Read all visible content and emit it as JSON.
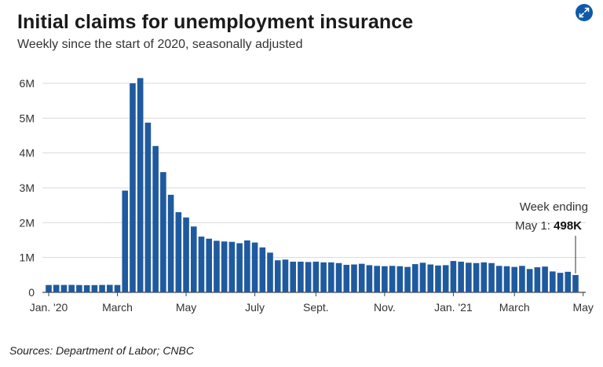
{
  "header": {
    "title": "Initial claims for unemployment insurance",
    "subtitle": "Weekly since the start of 2020, seasonally adjusted"
  },
  "annotation": {
    "line1": "Week ending",
    "line2_prefix": "May 1: ",
    "line2_value": "498K"
  },
  "footer": {
    "source": "Sources:  Department of Labor; CNBC"
  },
  "colors": {
    "bar": "#1f5a9e",
    "grid": "#d9d9d9",
    "expand_button": "#0f5aa8"
  },
  "icons": {
    "expand": "expand-arrows-icon"
  },
  "chart_data": {
    "type": "bar",
    "title": "Initial claims for unemployment insurance",
    "subtitle": "Weekly since the start of 2020, seasonally adjusted",
    "xlabel": "",
    "ylabel": "",
    "ylim": [
      0,
      6000000
    ],
    "y_ticks": [
      0,
      1000000,
      2000000,
      3000000,
      4000000,
      5000000,
      6000000
    ],
    "y_tick_labels": [
      "0",
      "1M",
      "2M",
      "3M",
      "4M",
      "5M",
      "6M"
    ],
    "x_tick_labels": [
      {
        "label": "Jan. '20",
        "index": 0
      },
      {
        "label": "March",
        "index": 9
      },
      {
        "label": "May",
        "index": 18
      },
      {
        "label": "July",
        "index": 27
      },
      {
        "label": "Sept.",
        "index": 35
      },
      {
        "label": "Nov.",
        "index": 44
      },
      {
        "label": "Jan. '21",
        "index": 53
      },
      {
        "label": "March",
        "index": 61
      },
      {
        "label": "May",
        "index": 70
      }
    ],
    "grid": true,
    "weeks": [
      "2020-01-04",
      "2020-01-11",
      "2020-01-18",
      "2020-01-25",
      "2020-02-01",
      "2020-02-08",
      "2020-02-15",
      "2020-02-22",
      "2020-02-29",
      "2020-03-07",
      "2020-03-14",
      "2020-03-21",
      "2020-03-28",
      "2020-04-04",
      "2020-04-11",
      "2020-04-18",
      "2020-04-25",
      "2020-05-02",
      "2020-05-09",
      "2020-05-16",
      "2020-05-23",
      "2020-05-30",
      "2020-06-06",
      "2020-06-13",
      "2020-06-20",
      "2020-06-27",
      "2020-07-04",
      "2020-07-11",
      "2020-07-18",
      "2020-07-25",
      "2020-08-01",
      "2020-08-08",
      "2020-08-15",
      "2020-08-22",
      "2020-08-29",
      "2020-09-05",
      "2020-09-12",
      "2020-09-19",
      "2020-09-26",
      "2020-10-03",
      "2020-10-10",
      "2020-10-17",
      "2020-10-24",
      "2020-10-31",
      "2020-11-07",
      "2020-11-14",
      "2020-11-21",
      "2020-11-28",
      "2020-12-05",
      "2020-12-12",
      "2020-12-19",
      "2020-12-26",
      "2021-01-02",
      "2021-01-09",
      "2021-01-16",
      "2021-01-23",
      "2021-01-30",
      "2021-02-06",
      "2021-02-13",
      "2021-02-20",
      "2021-02-27",
      "2021-03-06",
      "2021-03-13",
      "2021-03-20",
      "2021-03-27",
      "2021-04-03",
      "2021-04-10",
      "2021-04-17",
      "2021-04-24",
      "2021-05-01"
    ],
    "values": [
      210000,
      215000,
      212000,
      214000,
      210000,
      206000,
      208000,
      212000,
      215000,
      211000,
      2920000,
      6000000,
      6150000,
      4870000,
      4200000,
      3450000,
      2800000,
      2300000,
      2150000,
      1890000,
      1600000,
      1540000,
      1480000,
      1460000,
      1450000,
      1410000,
      1490000,
      1430000,
      1290000,
      1140000,
      920000,
      940000,
      880000,
      880000,
      870000,
      880000,
      860000,
      860000,
      840000,
      790000,
      800000,
      820000,
      780000,
      760000,
      750000,
      760000,
      750000,
      730000,
      810000,
      850000,
      800000,
      770000,
      780000,
      900000,
      880000,
      850000,
      840000,
      860000,
      840000,
      760000,
      750000,
      730000,
      760000,
      670000,
      720000,
      740000,
      600000,
      560000,
      590000,
      498000
    ]
  }
}
